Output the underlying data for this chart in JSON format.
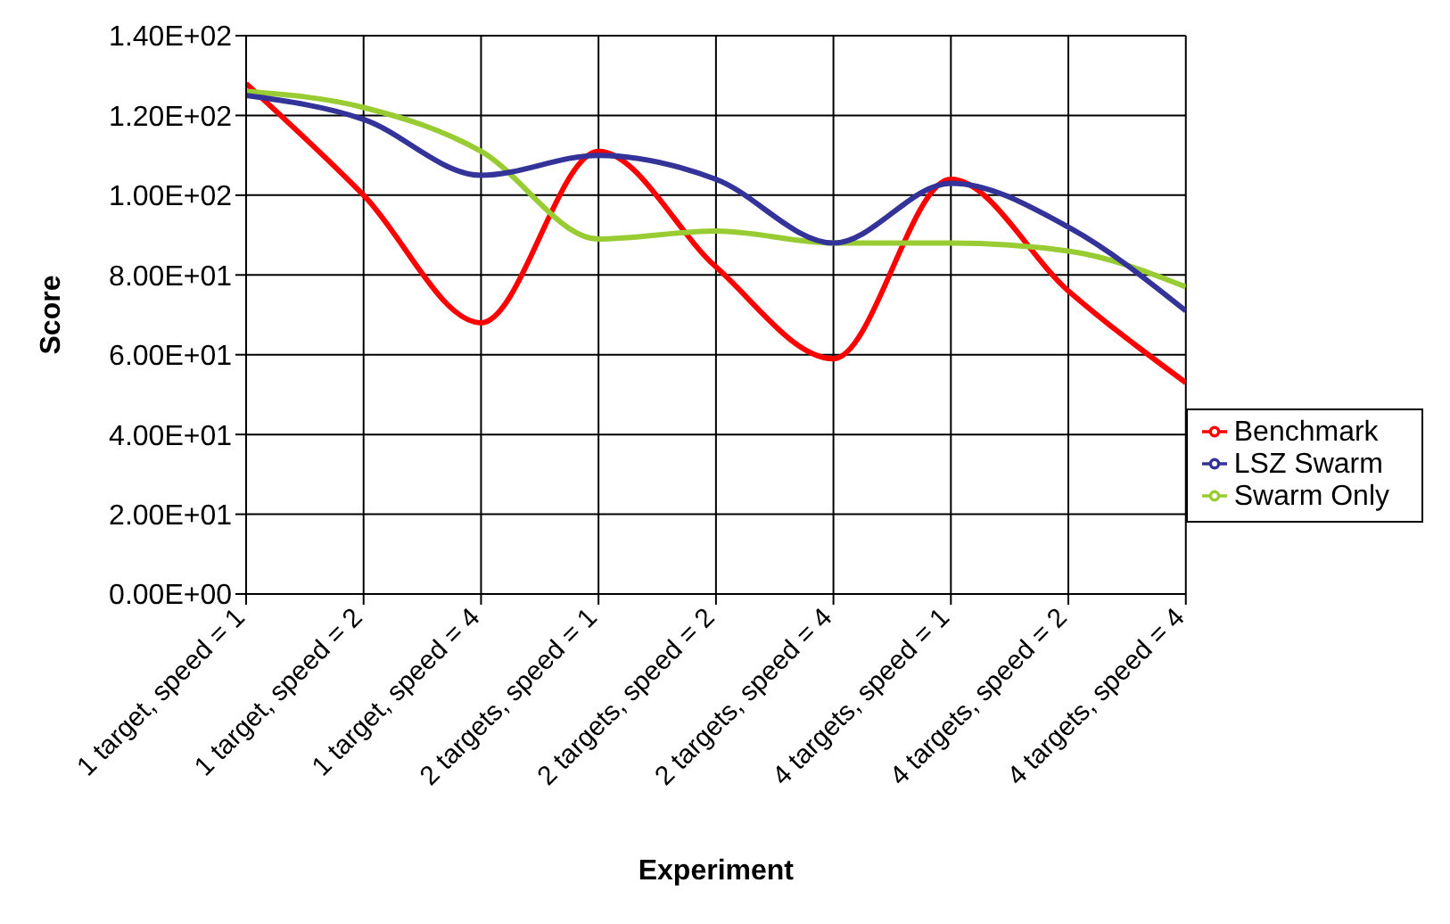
{
  "chart_data": {
    "type": "line",
    "xlabel": "Experiment",
    "ylabel": "Score",
    "categories": [
      "1 target, speed = 1",
      "1 target, speed = 2",
      "1 target, speed = 4",
      "2 targets, speed = 1",
      "2 targets, speed = 2",
      "2 targets, speed = 4",
      "4 targets, speed = 1",
      "4 targets, speed = 2",
      "4 targets, speed = 4"
    ],
    "series": [
      {
        "name": "Benchmark",
        "color": "#ff0000",
        "values": [
          128,
          100,
          68,
          111,
          82,
          59,
          104,
          76,
          53
        ]
      },
      {
        "name": "Swarm Only",
        "color": "#99cc33",
        "values": [
          126,
          122,
          111,
          89,
          91,
          88,
          88,
          86,
          77
        ]
      },
      {
        "name": "LSZ Swarm",
        "color": "#333399",
        "values": [
          125,
          119,
          105,
          110,
          104,
          88,
          103,
          92,
          71
        ]
      }
    ],
    "ylim": [
      0,
      140
    ],
    "yticks": [
      {
        "value": 0,
        "label": "0.00E+00"
      },
      {
        "value": 20,
        "label": "2.00E+01"
      },
      {
        "value": 40,
        "label": "4.00E+01"
      },
      {
        "value": 60,
        "label": "6.00E+01"
      },
      {
        "value": 80,
        "label": "8.00E+01"
      },
      {
        "value": 100,
        "label": "1.00E+02"
      },
      {
        "value": 120,
        "label": "1.20E+02"
      },
      {
        "value": 140,
        "label": "1.40E+02"
      }
    ],
    "grid": true,
    "legend": "right",
    "marker": "none",
    "line_style": "solid"
  }
}
